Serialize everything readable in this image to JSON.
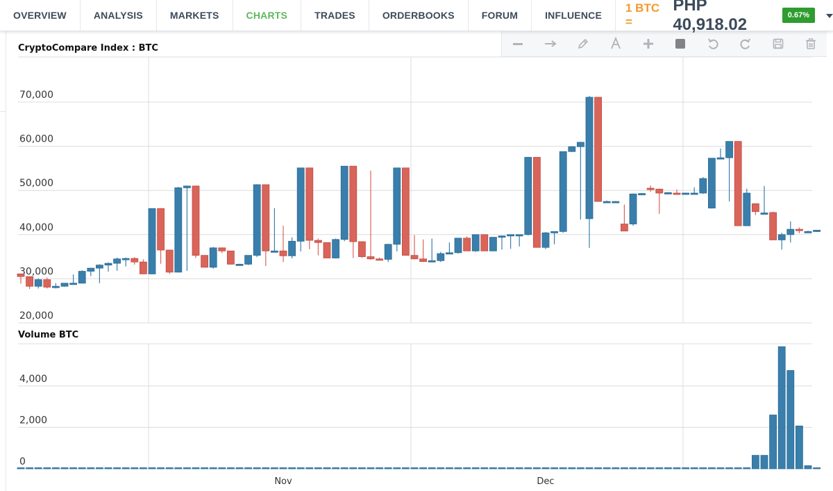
{
  "nav": {
    "tabs": [
      {
        "label": "OVERVIEW",
        "active": false
      },
      {
        "label": "ANALYSIS",
        "active": false
      },
      {
        "label": "MARKETS",
        "active": false
      },
      {
        "label": "CHARTS",
        "active": true
      },
      {
        "label": "TRADES",
        "active": false
      },
      {
        "label": "ORDERBOOKS",
        "active": false
      },
      {
        "label": "FORUM",
        "active": false
      },
      {
        "label": "INFLUENCE",
        "active": false
      }
    ],
    "unit_label": "1 BTC =",
    "price": "PHP 40,918.02",
    "change": "0.67%",
    "colors": {
      "accent": "#5cb85c",
      "unit": "#f39a2b",
      "badge": "#2e9c2e"
    }
  },
  "toolbar": {
    "tools": [
      "minus-icon",
      "arrow-right-icon",
      "pencil-icon",
      "text-icon",
      "plus-icon",
      "square-icon",
      "undo-icon",
      "redo-icon",
      "save-icon",
      "trash-icon"
    ]
  },
  "chart_data": [
    {
      "type": "candlestick",
      "title": "CryptoCompare Index : BTC",
      "ylim": [
        20000,
        73000
      ],
      "yticks": [
        20000,
        30000,
        40000,
        50000,
        60000,
        70000
      ],
      "ytick_labels": [
        "20,000",
        "30,000",
        "40,000",
        "50,000",
        "60,000",
        "70,000"
      ],
      "xtick_labels": [
        "Nov",
        "Dec"
      ],
      "grid": true,
      "colors": {
        "up": "#3a7fab",
        "down": "#d9645a"
      },
      "candles": [
        [
          31100,
          31100,
          28900,
          30500
        ],
        [
          30500,
          30500,
          27700,
          28300
        ],
        [
          28300,
          30100,
          27800,
          29800
        ],
        [
          29800,
          30300,
          27800,
          28100
        ],
        [
          28100,
          29000,
          27800,
          28300
        ],
        [
          28300,
          29000,
          28200,
          29000
        ],
        [
          29000,
          31000,
          28900,
          29000
        ],
        [
          29000,
          31900,
          28900,
          31700
        ],
        [
          31700,
          32500,
          30600,
          32400
        ],
        [
          32400,
          33300,
          29000,
          33100
        ],
        [
          33100,
          33700,
          31600,
          33500
        ],
        [
          33500,
          34800,
          31800,
          34500
        ],
        [
          34500,
          34800,
          32800,
          34600
        ],
        [
          34600,
          34900,
          33200,
          33800
        ],
        [
          33800,
          34400,
          31100,
          31100
        ],
        [
          31100,
          45900,
          31000,
          45900
        ],
        [
          45900,
          46000,
          33400,
          36500
        ],
        [
          36500,
          36600,
          31100,
          31500
        ],
        [
          31500,
          50800,
          31400,
          50600
        ],
        [
          50600,
          51100,
          31800,
          51000
        ],
        [
          51000,
          51100,
          34700,
          35300
        ],
        [
          35300,
          35300,
          32600,
          32600
        ],
        [
          32600,
          37200,
          32300,
          37000
        ],
        [
          37000,
          37100,
          35800,
          36300
        ],
        [
          36300,
          36300,
          33200,
          33300
        ],
        [
          33300,
          33400,
          33100,
          33300
        ],
        [
          33300,
          35300,
          33100,
          35300
        ],
        [
          35300,
          51400,
          34900,
          51300
        ],
        [
          51300,
          51300,
          32900,
          36300
        ],
        [
          36300,
          46000,
          36300,
          36300
        ],
        [
          36300,
          42000,
          33800,
          35200
        ],
        [
          35200,
          39400,
          34600,
          38500
        ],
        [
          38500,
          55100,
          36200,
          55100
        ],
        [
          55100,
          55100,
          36700,
          38700
        ],
        [
          38700,
          39100,
          35300,
          38200
        ],
        [
          38200,
          38200,
          34700,
          34700
        ],
        [
          34700,
          39100,
          34600,
          38900
        ],
        [
          38900,
          55500,
          38500,
          55500
        ],
        [
          55500,
          55500,
          34700,
          38400
        ],
        [
          38400,
          38500,
          34700,
          35000
        ],
        [
          35000,
          54500,
          34300,
          34500
        ],
        [
          34500,
          34800,
          34200,
          34400
        ],
        [
          34400,
          37900,
          33800,
          37800
        ],
        [
          37800,
          55100,
          36200,
          55100
        ],
        [
          55100,
          55100,
          35300,
          35300
        ],
        [
          35300,
          39900,
          34400,
          34500
        ],
        [
          34500,
          38900,
          33800,
          33900
        ],
        [
          33900,
          39100,
          33800,
          34100
        ],
        [
          34100,
          36100,
          33800,
          35700
        ],
        [
          35700,
          38200,
          35600,
          35900
        ],
        [
          35900,
          39200,
          35700,
          39200
        ],
        [
          39200,
          39600,
          36300,
          36300
        ],
        [
          36300,
          40000,
          36100,
          40000
        ],
        [
          40000,
          40000,
          36300,
          36300
        ],
        [
          36300,
          39400,
          36300,
          39400
        ],
        [
          39400,
          39800,
          36600,
          39700
        ],
        [
          39700,
          40000,
          36800,
          40000
        ],
        [
          40000,
          40000,
          37300,
          40000
        ],
        [
          40000,
          57600,
          39800,
          57500
        ],
        [
          57500,
          57500,
          37100,
          37100
        ],
        [
          37100,
          40600,
          36700,
          40400
        ],
        [
          40400,
          40700,
          37800,
          40700
        ],
        [
          40700,
          58800,
          40400,
          58800
        ],
        [
          58800,
          60000,
          58700,
          59900
        ],
        [
          59900,
          61000,
          43400,
          60900
        ],
        [
          43600,
          71400,
          37000,
          71100
        ],
        [
          71100,
          71100,
          47500,
          47500
        ],
        [
          47500,
          47700,
          47300,
          47500
        ],
        [
          47500,
          47600,
          47300,
          47500
        ],
        [
          42400,
          46800,
          40800,
          40800
        ],
        [
          42400,
          49300,
          42000,
          49200
        ],
        [
          49200,
          49400,
          49100,
          49300
        ],
        [
          50500,
          51100,
          49700,
          50300
        ],
        [
          50300,
          50400,
          44700,
          49400
        ],
        [
          49300,
          49600,
          49200,
          49500
        ],
        [
          49400,
          50200,
          49000,
          49300
        ],
        [
          49300,
          49500,
          49200,
          49400
        ],
        [
          49400,
          50700,
          49300,
          49400
        ],
        [
          49400,
          53000,
          49200,
          52700
        ],
        [
          46000,
          57300,
          45900,
          57300
        ],
        [
          57300,
          59500,
          57200,
          57400
        ],
        [
          57400,
          61100,
          47500,
          61100
        ],
        [
          61100,
          61100,
          42000,
          42000
        ],
        [
          42000,
          50400,
          42000,
          49400
        ],
        [
          47000,
          47100,
          44400,
          45200
        ],
        [
          44800,
          51000,
          44600,
          44900
        ],
        [
          45000,
          45200,
          38800,
          38800
        ],
        [
          38800,
          40400,
          36600,
          40000
        ],
        [
          40000,
          43000,
          38200,
          41200
        ],
        [
          41200,
          41600,
          40300,
          40900
        ],
        [
          40600,
          40900,
          40500,
          40700
        ],
        [
          40700,
          41000,
          40600,
          41000
        ]
      ]
    },
    {
      "type": "bar",
      "title": "Volume BTC",
      "ylim": [
        0,
        6000
      ],
      "yticks": [
        0,
        2000,
        4000
      ],
      "ytick_labels": [
        "0",
        "2,000",
        "4,000"
      ],
      "grid": true,
      "colors": {
        "bar": "#3a7fab"
      },
      "values": [
        10,
        15,
        40,
        10,
        10,
        10,
        10,
        30,
        15,
        10,
        10,
        10,
        10,
        10,
        10,
        10,
        10,
        10,
        10,
        10,
        10,
        10,
        10,
        10,
        10,
        10,
        10,
        10,
        10,
        10,
        25,
        10,
        10,
        10,
        10,
        10,
        10,
        10,
        10,
        10,
        10,
        10,
        10,
        10,
        10,
        10,
        10,
        10,
        10,
        10,
        10,
        10,
        10,
        10,
        10,
        10,
        10,
        10,
        10,
        10,
        10,
        10,
        10,
        10,
        10,
        30,
        10,
        10,
        10,
        10,
        10,
        10,
        10,
        10,
        10,
        10,
        10,
        10,
        20,
        30,
        40,
        40,
        40,
        40,
        650,
        650,
        2600,
        5900,
        4750,
        2070,
        150,
        30
      ]
    }
  ]
}
